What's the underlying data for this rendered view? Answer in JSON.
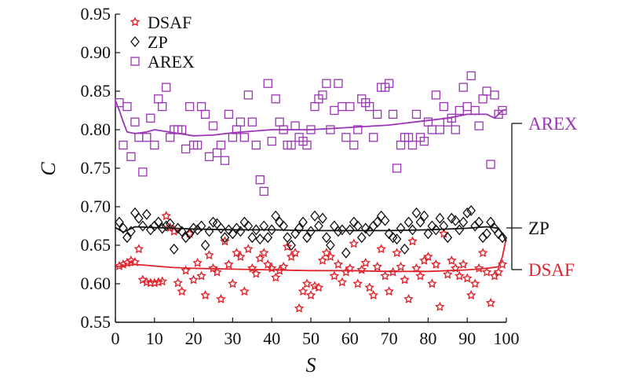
{
  "chart_data": {
    "type": "scatter",
    "xlabel": "S",
    "ylabel": "C",
    "xlim": [
      0,
      100
    ],
    "ylim": [
      0.55,
      0.95
    ],
    "xticks": [
      0,
      10,
      20,
      30,
      40,
      50,
      60,
      70,
      80,
      90,
      100
    ],
    "xtick_labels": [
      "0",
      "10",
      "20",
      "30",
      "40",
      "50",
      "60",
      "70",
      "80",
      "90",
      "100"
    ],
    "yticks": [
      0.55,
      0.6,
      0.65,
      0.7,
      0.75,
      0.8,
      0.85,
      0.9,
      0.95
    ],
    "ytick_labels": [
      "0.55",
      "0.60",
      "0.65",
      "0.70",
      "0.75",
      "0.80",
      "0.85",
      "0.90",
      "0.95"
    ],
    "grid": false,
    "legend_position": "top-left",
    "series": [
      {
        "name": "DSAF",
        "marker": "star",
        "color": "#e0242c",
        "line_color": "#e0242c",
        "annotation": "DSAF",
        "x": [
          1,
          2,
          3,
          4,
          5,
          6,
          7,
          8,
          9,
          10,
          11,
          12,
          13,
          14,
          15,
          16,
          17,
          18,
          19,
          20,
          21,
          22,
          23,
          24,
          25,
          26,
          27,
          28,
          29,
          30,
          31,
          32,
          33,
          34,
          35,
          36,
          37,
          38,
          39,
          40,
          41,
          42,
          43,
          44,
          45,
          46,
          47,
          48,
          49,
          50,
          51,
          52,
          53,
          54,
          55,
          56,
          57,
          58,
          59,
          60,
          61,
          62,
          63,
          64,
          65,
          66,
          67,
          68,
          69,
          70,
          71,
          72,
          73,
          74,
          75,
          76,
          77,
          78,
          79,
          80,
          81,
          82,
          83,
          84,
          85,
          86,
          87,
          88,
          89,
          90,
          91,
          92,
          93,
          94,
          95,
          96,
          97,
          98,
          99
        ],
        "y": [
          0.623,
          0.625,
          0.627,
          0.63,
          0.628,
          0.645,
          0.605,
          0.602,
          0.601,
          0.601,
          0.602,
          0.603,
          0.688,
          0.673,
          0.668,
          0.601,
          0.59,
          0.617,
          0.665,
          0.605,
          0.627,
          0.61,
          0.585,
          0.637,
          0.62,
          0.615,
          0.58,
          0.655,
          0.625,
          0.6,
          0.64,
          0.635,
          0.59,
          0.645,
          0.62,
          0.613,
          0.633,
          0.64,
          0.625,
          0.62,
          0.608,
          0.617,
          0.622,
          0.648,
          0.635,
          0.64,
          0.568,
          0.59,
          0.6,
          0.585,
          0.597,
          0.595,
          0.63,
          0.64,
          0.635,
          0.61,
          0.625,
          0.602,
          0.615,
          0.62,
          0.652,
          0.6,
          0.618,
          0.627,
          0.595,
          0.585,
          0.622,
          0.645,
          0.61,
          0.59,
          0.615,
          0.64,
          0.622,
          0.605,
          0.58,
          0.655,
          0.62,
          0.61,
          0.63,
          0.635,
          0.6,
          0.625,
          0.57,
          0.665,
          0.612,
          0.63,
          0.62,
          0.61,
          0.625,
          0.607,
          0.585,
          0.6,
          0.62,
          0.64,
          0.615,
          0.575,
          0.61,
          0.615,
          0.625
        ],
        "trend_x": [
          0,
          5,
          8,
          10,
          15,
          20,
          30,
          40,
          50,
          60,
          70,
          80,
          85,
          90,
          95,
          98,
          99,
          100
        ],
        "trend_y": [
          0.622,
          0.625,
          0.624,
          0.623,
          0.621,
          0.62,
          0.619,
          0.618,
          0.617,
          0.617,
          0.616,
          0.616,
          0.617,
          0.618,
          0.62,
          0.622,
          0.635,
          0.66
        ]
      },
      {
        "name": "ZP",
        "marker": "diamond",
        "color": "#111111",
        "line_color": "#111111",
        "annotation": "ZP",
        "x": [
          1,
          2,
          3,
          4,
          5,
          6,
          7,
          8,
          9,
          10,
          11,
          12,
          13,
          14,
          15,
          16,
          17,
          18,
          19,
          20,
          21,
          22,
          23,
          24,
          25,
          26,
          27,
          28,
          29,
          30,
          31,
          32,
          33,
          34,
          35,
          36,
          37,
          38,
          39,
          40,
          41,
          42,
          43,
          44,
          45,
          46,
          47,
          48,
          49,
          50,
          51,
          52,
          53,
          54,
          55,
          56,
          57,
          58,
          59,
          60,
          61,
          62,
          63,
          64,
          65,
          66,
          67,
          68,
          69,
          70,
          71,
          72,
          73,
          74,
          75,
          76,
          77,
          78,
          79,
          80,
          81,
          82,
          83,
          84,
          85,
          86,
          87,
          88,
          89,
          90,
          91,
          92,
          93,
          94,
          95,
          96,
          97,
          98,
          99
        ],
        "y": [
          0.68,
          0.672,
          0.66,
          0.668,
          0.692,
          0.685,
          0.675,
          0.69,
          0.67,
          0.675,
          0.68,
          0.672,
          0.675,
          0.678,
          0.645,
          0.672,
          0.668,
          0.66,
          0.665,
          0.672,
          0.67,
          0.675,
          0.65,
          0.668,
          0.68,
          0.678,
          0.672,
          0.66,
          0.67,
          0.665,
          0.672,
          0.668,
          0.68,
          0.675,
          0.66,
          0.67,
          0.658,
          0.675,
          0.66,
          0.67,
          0.688,
          0.68,
          0.675,
          0.66,
          0.65,
          0.665,
          0.672,
          0.68,
          0.66,
          0.668,
          0.688,
          0.675,
          0.685,
          0.66,
          0.65,
          0.675,
          0.668,
          0.67,
          0.64,
          0.67,
          0.68,
          0.675,
          0.66,
          0.672,
          0.668,
          0.675,
          0.68,
          0.688,
          0.682,
          0.665,
          0.66,
          0.658,
          0.672,
          0.645,
          0.68,
          0.67,
          0.692,
          0.68,
          0.688,
          0.665,
          0.675,
          0.67,
          0.685,
          0.675,
          0.66,
          0.685,
          0.682,
          0.67,
          0.68,
          0.692,
          0.695,
          0.675,
          0.68,
          0.66,
          0.665,
          0.68,
          0.672,
          0.665,
          0.66
        ],
        "trend_x": [
          0,
          2,
          5,
          10,
          20,
          30,
          40,
          50,
          60,
          70,
          80,
          90,
          95,
          98,
          99,
          100
        ],
        "trend_y": [
          0.673,
          0.667,
          0.674,
          0.673,
          0.671,
          0.67,
          0.67,
          0.669,
          0.669,
          0.669,
          0.67,
          0.672,
          0.674,
          0.672,
          0.665,
          0.655
        ]
      },
      {
        "name": "AREX",
        "marker": "square",
        "color": "#9a35b5",
        "line_color": "#9a35b5",
        "annotation": "AREX",
        "x": [
          1,
          2,
          3,
          4,
          5,
          6,
          7,
          8,
          9,
          10,
          11,
          12,
          13,
          14,
          15,
          16,
          17,
          18,
          19,
          20,
          21,
          22,
          23,
          24,
          25,
          26,
          27,
          28,
          29,
          30,
          31,
          32,
          33,
          34,
          35,
          36,
          37,
          38,
          39,
          40,
          41,
          42,
          43,
          44,
          45,
          46,
          47,
          48,
          49,
          50,
          51,
          52,
          53,
          54,
          55,
          56,
          57,
          58,
          59,
          60,
          61,
          62,
          63,
          64,
          65,
          66,
          67,
          68,
          69,
          70,
          71,
          72,
          73,
          74,
          75,
          76,
          77,
          78,
          79,
          80,
          81,
          82,
          83,
          84,
          85,
          86,
          87,
          88,
          89,
          90,
          91,
          92,
          93,
          94,
          95,
          96,
          97,
          98,
          99
        ],
        "y": [
          0.835,
          0.78,
          0.83,
          0.765,
          0.81,
          0.79,
          0.745,
          0.79,
          0.815,
          0.78,
          0.84,
          0.83,
          0.855,
          0.79,
          0.8,
          0.8,
          0.8,
          0.775,
          0.83,
          0.78,
          0.78,
          0.83,
          0.82,
          0.765,
          0.805,
          0.77,
          0.78,
          0.76,
          0.82,
          0.79,
          0.8,
          0.81,
          0.79,
          0.845,
          0.81,
          0.78,
          0.735,
          0.72,
          0.86,
          0.785,
          0.84,
          0.81,
          0.8,
          0.78,
          0.78,
          0.805,
          0.79,
          0.785,
          0.78,
          0.8,
          0.83,
          0.84,
          0.845,
          0.86,
          0.8,
          0.825,
          0.86,
          0.83,
          0.79,
          0.83,
          0.78,
          0.8,
          0.84,
          0.835,
          0.83,
          0.79,
          0.82,
          0.855,
          0.855,
          0.86,
          0.82,
          0.75,
          0.78,
          0.79,
          0.79,
          0.78,
          0.82,
          0.79,
          0.785,
          0.81,
          0.8,
          0.845,
          0.8,
          0.83,
          0.81,
          0.815,
          0.8,
          0.825,
          0.855,
          0.83,
          0.87,
          0.825,
          0.805,
          0.84,
          0.85,
          0.755,
          0.845,
          0.82,
          0.825
        ],
        "trend_x": [
          0,
          1,
          2,
          3,
          5,
          8,
          10,
          15,
          20,
          25,
          30,
          40,
          50,
          60,
          70,
          80,
          85,
          90,
          95,
          97,
          98,
          99,
          100
        ],
        "trend_y": [
          0.838,
          0.825,
          0.81,
          0.797,
          0.795,
          0.797,
          0.8,
          0.796,
          0.792,
          0.793,
          0.796,
          0.8,
          0.8,
          0.803,
          0.806,
          0.812,
          0.815,
          0.82,
          0.82,
          0.815,
          0.82,
          0.825,
          0.826
        ]
      }
    ]
  }
}
